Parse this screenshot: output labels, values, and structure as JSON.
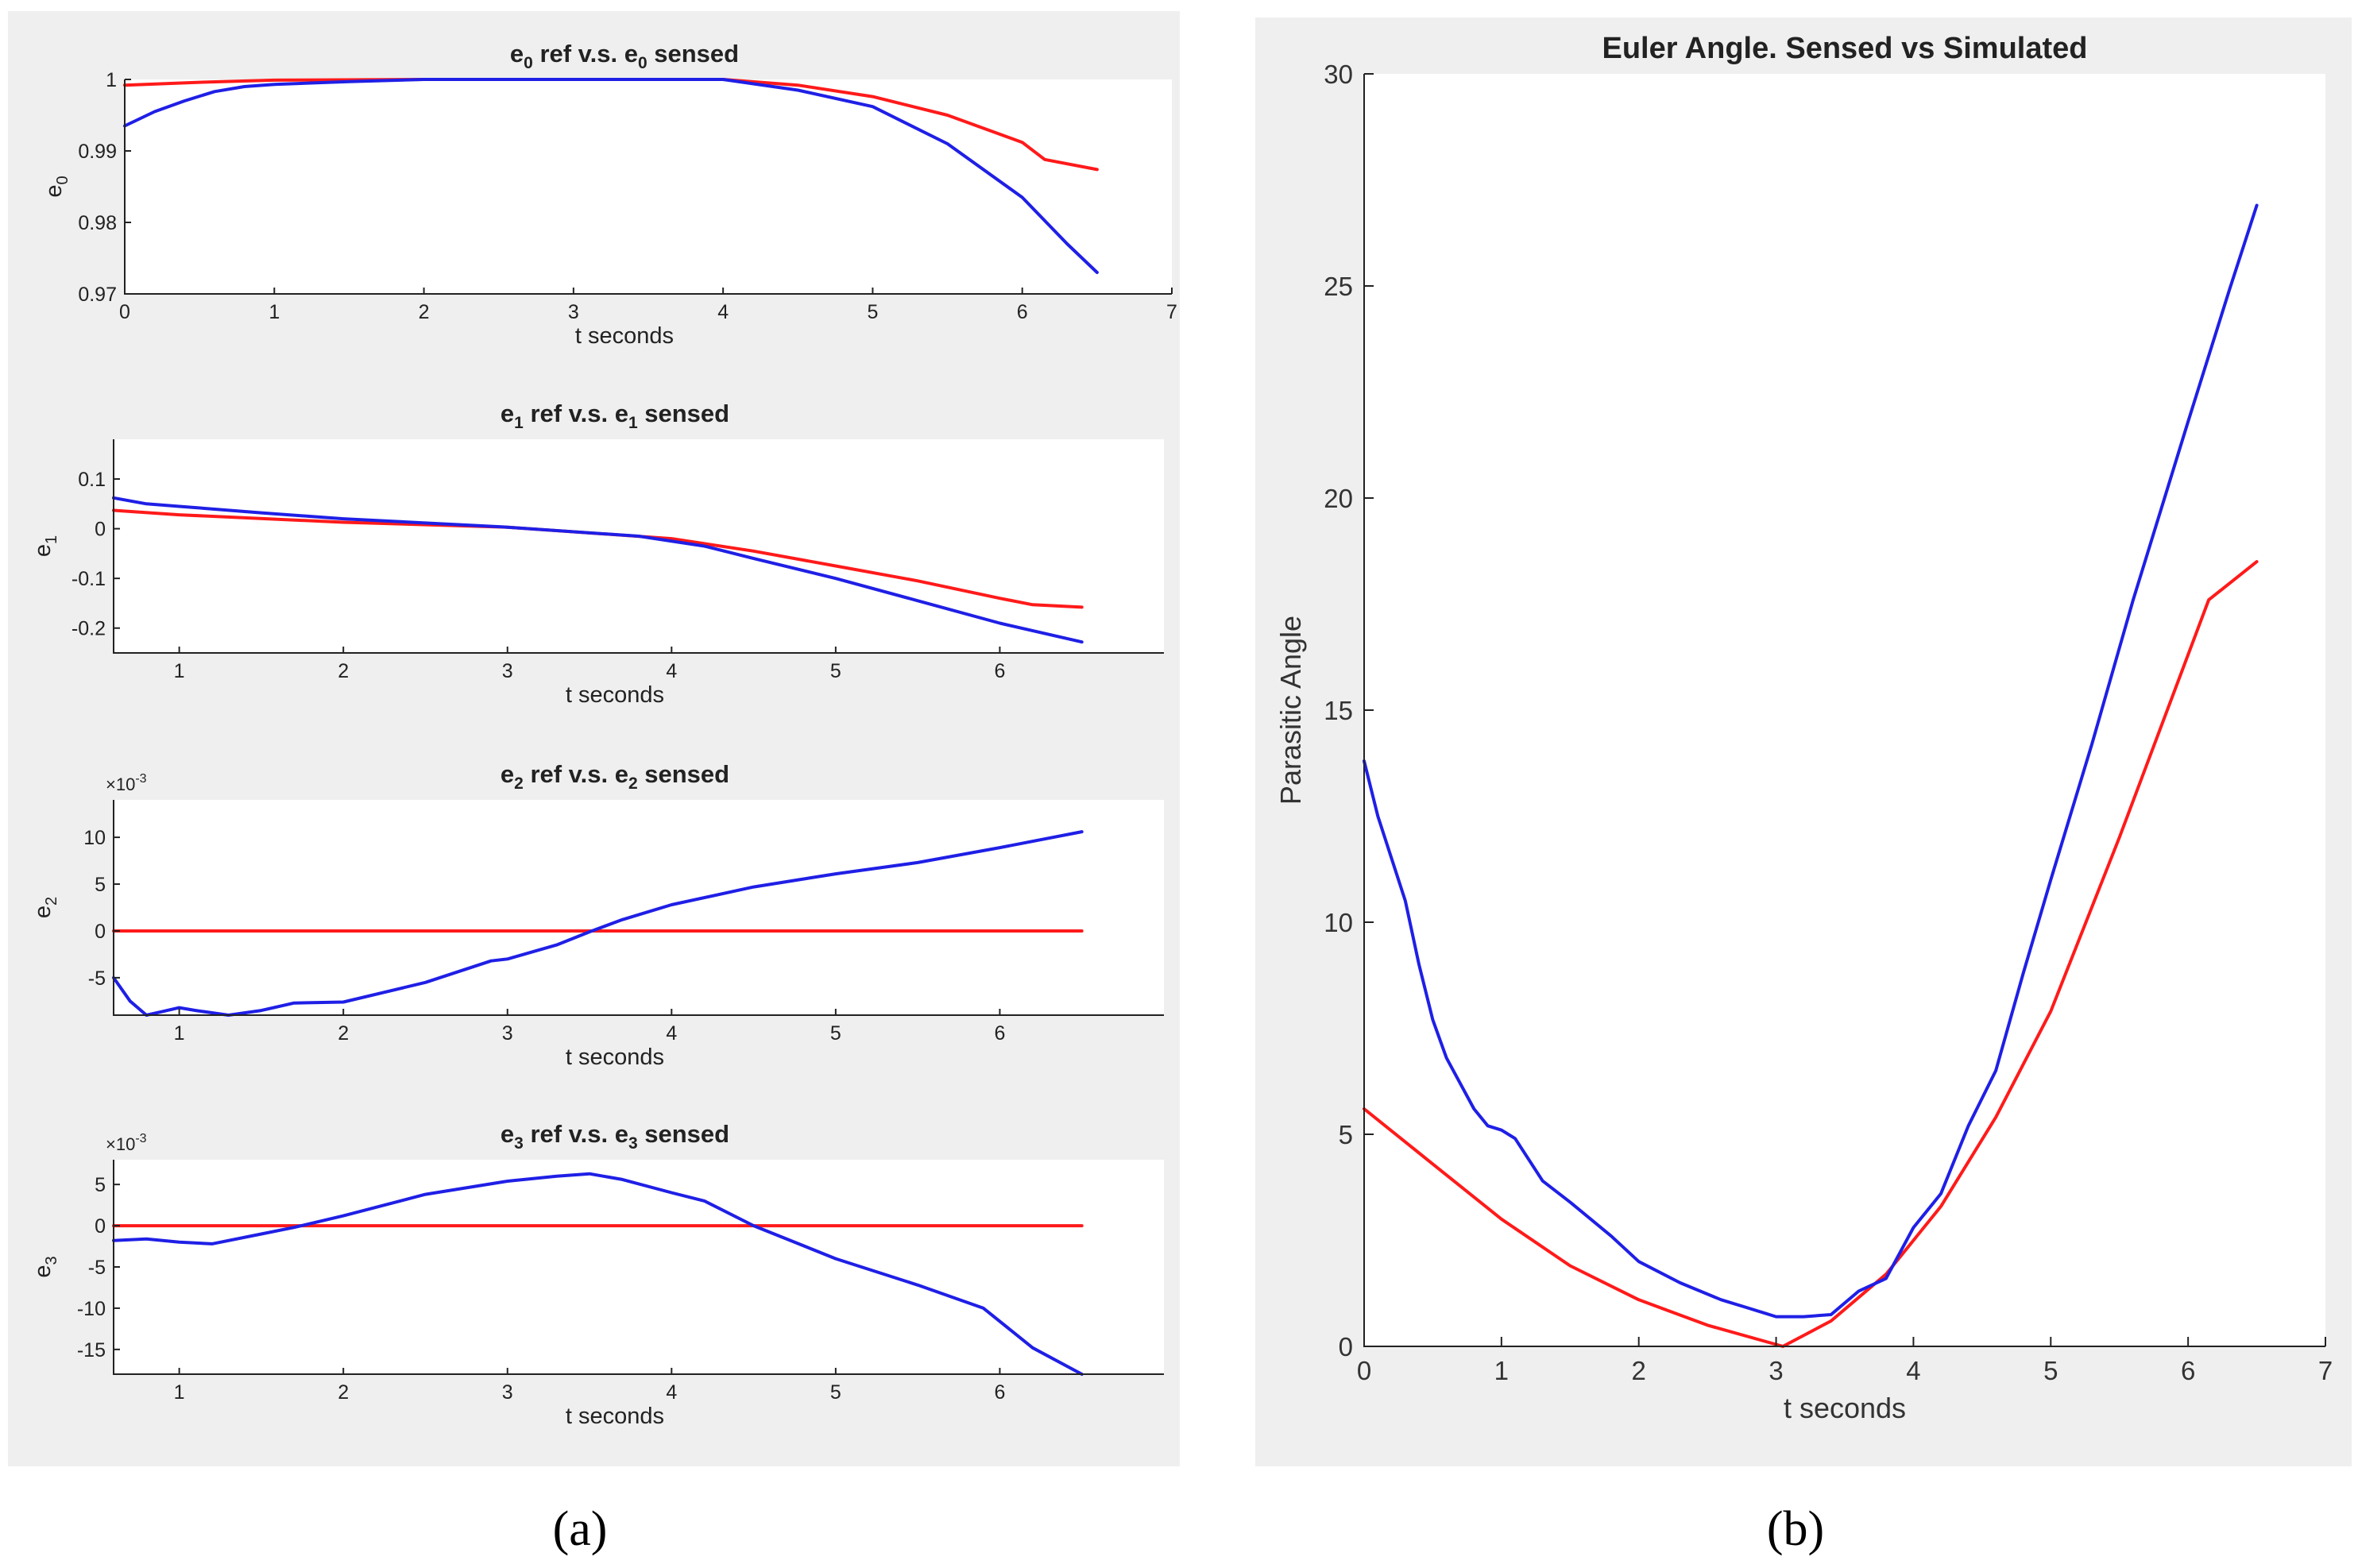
{
  "colors": {
    "reference": "#ff1a1a",
    "sensed": "#1f1fe6"
  },
  "captions": {
    "a": "(a)",
    "b": "(b)"
  },
  "chart_data": [
    {
      "id": "e0",
      "type": "line",
      "title": "e0 ref v.s. e0 sensed",
      "title_main": "e",
      "title_sub": "0",
      "title_mid": " ref v.s. e",
      "title_sub2": "0",
      "title_end": " sensed",
      "xlabel": "t seconds",
      "ylabel_main": "e",
      "ylabel_sub": "0",
      "xlim": [
        0,
        7
      ],
      "ylim": [
        0.97,
        1.0
      ],
      "xticks": [
        0,
        1,
        2,
        3,
        4,
        5,
        6,
        7
      ],
      "xtick_labels": [
        "0",
        "1",
        "2",
        "3",
        "4",
        "5",
        "6",
        "7"
      ],
      "yticks": [
        0.97,
        0.98,
        0.99,
        1.0
      ],
      "ytick_labels": [
        "0.97",
        "0.98",
        "0.99",
        "1"
      ],
      "series": [
        {
          "name": "ref",
          "color_key": "reference",
          "x": [
            0,
            0.5,
            1,
            2,
            3,
            4,
            4.5,
            5,
            5.5,
            6,
            6.15,
            6.5
          ],
          "y": [
            0.9992,
            0.9996,
            0.9999,
            1.0,
            1.0,
            1.0,
            0.9992,
            0.9976,
            0.995,
            0.9912,
            0.9888,
            0.9874
          ]
        },
        {
          "name": "sensed",
          "color_key": "sensed",
          "x": [
            0,
            0.2,
            0.4,
            0.6,
            0.8,
            1,
            1.5,
            2,
            3,
            4,
            4.5,
            5,
            5.5,
            6,
            6.3,
            6.5
          ],
          "y": [
            0.9935,
            0.9955,
            0.997,
            0.9983,
            0.999,
            0.9993,
            0.9997,
            1.0,
            1.0,
            1.0,
            0.9985,
            0.9962,
            0.991,
            0.9835,
            0.977,
            0.973
          ]
        }
      ]
    },
    {
      "id": "e1",
      "type": "line",
      "title": "e1 ref v.s. e1 sensed",
      "title_main": "e",
      "title_sub": "1",
      "title_mid": " ref v.s. e",
      "title_sub2": "1",
      "title_end": " sensed",
      "xlabel": "t seconds",
      "ylabel_main": "e",
      "ylabel_sub": "1",
      "xlim": [
        0.6,
        7.0
      ],
      "ylim": [
        -0.25,
        0.18
      ],
      "xticks": [
        1,
        2,
        3,
        4,
        5,
        6
      ],
      "xtick_labels": [
        "1",
        "2",
        "3",
        "4",
        "5",
        "6"
      ],
      "yticks": [
        -0.2,
        -0.1,
        0,
        0.1
      ],
      "ytick_labels": [
        "-0.2",
        "-0.1",
        "0",
        "0.1"
      ],
      "series": [
        {
          "name": "ref",
          "color_key": "reference",
          "x": [
            0.6,
            1,
            2,
            3,
            4,
            4.5,
            5,
            5.5,
            6,
            6.2,
            6.5
          ],
          "y": [
            0.037,
            0.028,
            0.013,
            0.003,
            -0.02,
            -0.045,
            -0.075,
            -0.105,
            -0.14,
            -0.153,
            -0.158
          ]
        },
        {
          "name": "sensed",
          "color_key": "sensed",
          "x": [
            0.6,
            0.8,
            1,
            1.5,
            2,
            3,
            3.8,
            4.2,
            4.5,
            5,
            5.5,
            6,
            6.5
          ],
          "y": [
            0.062,
            0.05,
            0.045,
            0.032,
            0.02,
            0.003,
            -0.015,
            -0.035,
            -0.06,
            -0.1,
            -0.145,
            -0.19,
            -0.228
          ]
        }
      ]
    },
    {
      "id": "e2",
      "type": "line",
      "title": "e2 ref v.s. e2 sensed",
      "title_main": "e",
      "title_sub": "2",
      "title_mid": " ref v.s. e",
      "title_sub2": "2",
      "title_end": " sensed",
      "xlabel": "t  seconds",
      "ylabel_main": "e",
      "ylabel_sub": "2",
      "sci_base": "×10",
      "sci_exp": "-3",
      "xlim": [
        0.6,
        7.0
      ],
      "ylim": [
        -9,
        14
      ],
      "xticks": [
        1,
        2,
        3,
        4,
        5,
        6
      ],
      "xtick_labels": [
        "1",
        "2",
        "3",
        "4",
        "5",
        "6"
      ],
      "yticks": [
        -5,
        0,
        5,
        10
      ],
      "ytick_labels": [
        "-5",
        "0",
        "5",
        "10"
      ],
      "series": [
        {
          "name": "ref",
          "color_key": "reference",
          "x": [
            0.6,
            6.5
          ],
          "y": [
            0,
            0
          ]
        },
        {
          "name": "sensed",
          "color_key": "sensed",
          "x": [
            0.6,
            0.7,
            0.8,
            0.9,
            1.0,
            1.1,
            1.3,
            1.5,
            1.7,
            2.0,
            2.5,
            2.9,
            3.0,
            3.3,
            3.5,
            3.7,
            4.0,
            4.5,
            5.0,
            5.5,
            6.0,
            6.5
          ],
          "y": [
            -5,
            -7.5,
            -9,
            -8.6,
            -8.2,
            -8.5,
            -9,
            -8.5,
            -7.7,
            -7.6,
            -5.5,
            -3.2,
            -3,
            -1.5,
            -0.1,
            1.2,
            2.8,
            4.7,
            6.1,
            7.3,
            8.9,
            10.6
          ]
        }
      ]
    },
    {
      "id": "e3",
      "type": "line",
      "title": "e3 ref v.s. e3 sensed",
      "title_main": "e",
      "title_sub": "3",
      "title_mid": " ref v.s. e",
      "title_sub2": "3",
      "title_end": " sensed",
      "xlabel": "t seconds",
      "ylabel_main": "e",
      "ylabel_sub": "3",
      "sci_base": "×10",
      "sci_exp": "-3",
      "xlim": [
        0.6,
        7.0
      ],
      "ylim": [
        -18,
        8
      ],
      "xticks": [
        1,
        2,
        3,
        4,
        5,
        6
      ],
      "xtick_labels": [
        "1",
        "2",
        "3",
        "4",
        "5",
        "6"
      ],
      "yticks": [
        -15,
        -10,
        -5,
        0,
        5
      ],
      "ytick_labels": [
        "-15",
        "-10",
        "-5",
        "0",
        "5"
      ],
      "series": [
        {
          "name": "ref",
          "color_key": "reference",
          "x": [
            0.6,
            6.5
          ],
          "y": [
            0,
            0
          ]
        },
        {
          "name": "sensed",
          "color_key": "sensed",
          "x": [
            0.6,
            0.8,
            1.0,
            1.2,
            1.5,
            1.7,
            2.0,
            2.5,
            3.0,
            3.3,
            3.5,
            3.7,
            4.0,
            4.2,
            4.5,
            5.0,
            5.5,
            5.9,
            6.2,
            6.5
          ],
          "y": [
            -1.8,
            -1.6,
            -2,
            -2.2,
            -1,
            -0.2,
            1.2,
            3.8,
            5.4,
            6,
            6.3,
            5.6,
            4,
            3,
            0,
            -4,
            -7.2,
            -10,
            -14.8,
            -18
          ]
        }
      ]
    },
    {
      "id": "euler",
      "type": "line",
      "title": "Euler Angle. Sensed vs Simulated",
      "xlabel": "t seconds",
      "ylabel": "Parasitic Angle",
      "xlim": [
        0,
        7
      ],
      "ylim": [
        0,
        30
      ],
      "xticks": [
        0,
        1,
        2,
        3,
        4,
        5,
        6,
        7
      ],
      "xtick_labels": [
        "0",
        "1",
        "2",
        "3",
        "4",
        "5",
        "6",
        "7"
      ],
      "yticks": [
        0,
        5,
        10,
        15,
        20,
        25,
        30
      ],
      "ytick_labels": [
        "0",
        "5",
        "10",
        "15",
        "20",
        "25",
        "30"
      ],
      "series": [
        {
          "name": "simulated",
          "color_key": "reference",
          "x": [
            0,
            0.5,
            1,
            1.5,
            2,
            2.5,
            3.05,
            3.4,
            3.8,
            4.2,
            4.6,
            5,
            5.5,
            6.15,
            6.5
          ],
          "y": [
            5.6,
            4.3,
            3,
            1.9,
            1.1,
            0.5,
            0,
            0.6,
            1.7,
            3.3,
            5.4,
            7.9,
            12,
            17.6,
            18.5
          ]
        },
        {
          "name": "sensed",
          "color_key": "sensed",
          "x": [
            0,
            0.1,
            0.2,
            0.3,
            0.4,
            0.5,
            0.6,
            0.8,
            0.9,
            1.0,
            1.1,
            1.3,
            1.5,
            1.8,
            2.0,
            2.3,
            2.6,
            2.8,
            3.0,
            3.2,
            3.4,
            3.6,
            3.8,
            4.0,
            4.2,
            4.4,
            4.6,
            4.8,
            5.0,
            5.3,
            5.6,
            6.0,
            6.3,
            6.5
          ],
          "y": [
            13.8,
            12.5,
            11.5,
            10.5,
            9,
            7.7,
            6.8,
            5.6,
            5.2,
            5.1,
            4.9,
            3.9,
            3.4,
            2.6,
            2,
            1.5,
            1.1,
            0.9,
            0.7,
            0.7,
            0.75,
            1.3,
            1.6,
            2.8,
            3.6,
            5.2,
            6.5,
            8.8,
            11,
            14.2,
            17.6,
            21.8,
            24.9,
            26.9
          ]
        }
      ]
    }
  ]
}
